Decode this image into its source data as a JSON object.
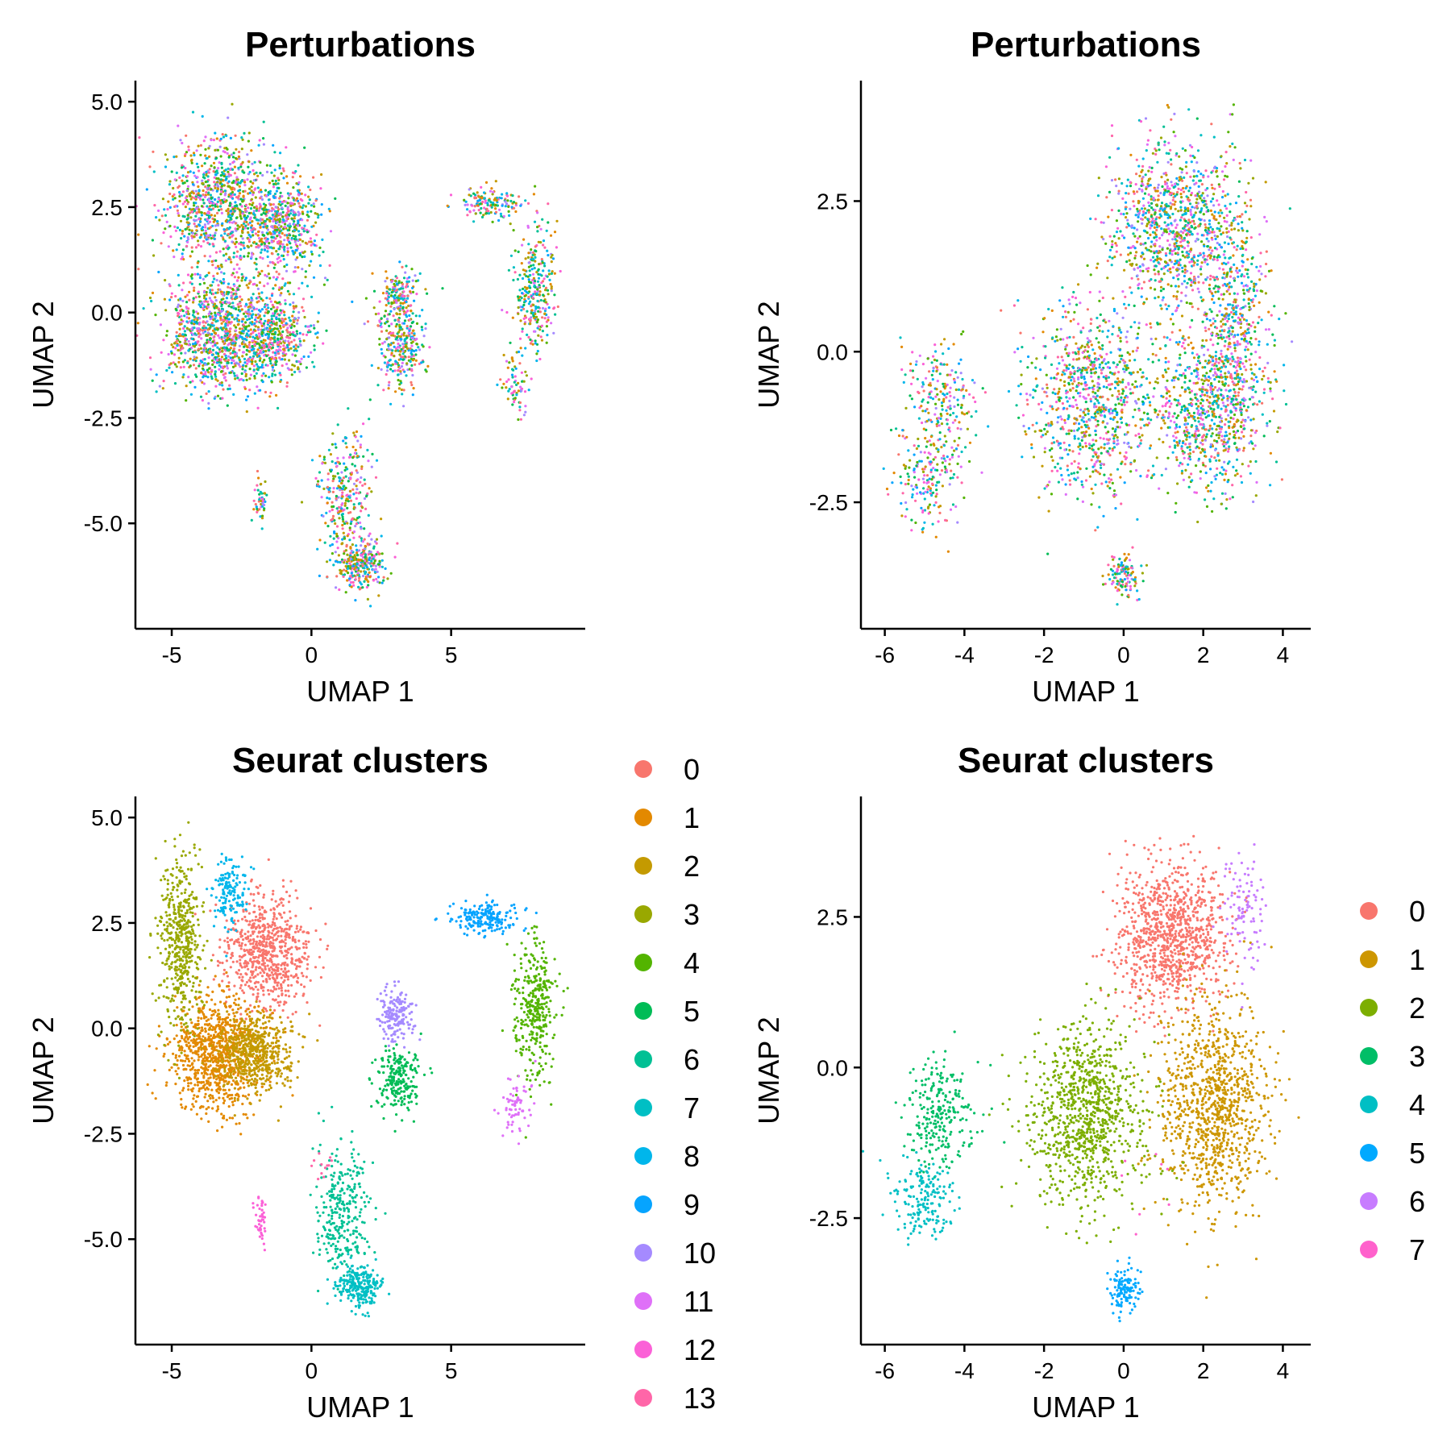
{
  "chart_data": [
    {
      "type": "scatter",
      "title": "Perturbations",
      "xlabel": "UMAP 1",
      "ylabel": "UMAP 2",
      "xlim": [
        -6.3,
        9.8
      ],
      "ylim": [
        -7.5,
        5.5
      ],
      "xticks": [
        -5,
        0,
        5
      ],
      "yticks": [
        -5.0,
        -2.5,
        0.0,
        2.5,
        5.0
      ],
      "xtick_labels": [
        "-5",
        "0",
        "5"
      ],
      "ytick_labels": [
        "-5.0",
        "-2.5",
        "0.0",
        "2.5",
        "5.0"
      ],
      "color_mode": "mixed",
      "legend": null,
      "groups": [
        {
          "cx": -3.3,
          "cy": 2.6,
          "sx": 1.3,
          "sy": 1.0,
          "n": 900
        },
        {
          "cx": -1.0,
          "cy": 2.0,
          "sx": 0.9,
          "sy": 0.8,
          "n": 550
        },
        {
          "cx": -3.5,
          "cy": -0.4,
          "sx": 1.2,
          "sy": 1.0,
          "n": 900
        },
        {
          "cx": -1.5,
          "cy": -0.6,
          "sx": 1.1,
          "sy": 0.7,
          "n": 600
        },
        {
          "cx": 3.2,
          "cy": -0.7,
          "sx": 0.6,
          "sy": 0.8,
          "n": 300
        },
        {
          "cx": 3.1,
          "cy": 0.4,
          "sx": 0.4,
          "sy": 0.4,
          "n": 150
        },
        {
          "cx": 6.4,
          "cy": 2.6,
          "sx": 0.8,
          "sy": 0.25,
          "n": 150
        },
        {
          "cx": 8.0,
          "cy": 0.5,
          "sx": 0.5,
          "sy": 1.1,
          "n": 300
        },
        {
          "cx": 7.3,
          "cy": -1.7,
          "sx": 0.3,
          "sy": 0.5,
          "n": 70
        },
        {
          "cx": 1.2,
          "cy": -4.4,
          "sx": 0.7,
          "sy": 1.0,
          "n": 300
        },
        {
          "cx": 1.7,
          "cy": -6.0,
          "sx": 0.6,
          "sy": 0.4,
          "n": 280
        },
        {
          "cx": -1.8,
          "cy": -4.5,
          "sx": 0.15,
          "sy": 0.4,
          "n": 45
        }
      ]
    },
    {
      "type": "scatter",
      "title": "Perturbations",
      "xlabel": "UMAP 1",
      "ylabel": "UMAP 2",
      "xlim": [
        -6.6,
        4.7
      ],
      "ylim": [
        -4.6,
        4.5
      ],
      "xticks": [
        -6,
        -4,
        -2,
        0,
        2,
        4
      ],
      "yticks": [
        -2.5,
        0.0,
        2.5
      ],
      "xtick_labels": [
        "-6",
        "-4",
        "-2",
        "0",
        "2",
        "4"
      ],
      "ytick_labels": [
        "-2.5",
        "0.0",
        "2.5"
      ],
      "color_mode": "mixed",
      "legend": null,
      "groups": [
        {
          "cx": 1.3,
          "cy": 2.1,
          "sx": 1.1,
          "sy": 0.9,
          "n": 1000
        },
        {
          "cx": 2.8,
          "cy": 0.3,
          "sx": 0.6,
          "sy": 1.3,
          "n": 550
        },
        {
          "cx": 2.0,
          "cy": -1.0,
          "sx": 0.9,
          "sy": 0.9,
          "n": 700
        },
        {
          "cx": -0.8,
          "cy": -0.8,
          "sx": 1.1,
          "sy": 1.0,
          "n": 900
        },
        {
          "cx": -4.6,
          "cy": -0.9,
          "sx": 0.6,
          "sy": 0.7,
          "n": 250
        },
        {
          "cx": -5.0,
          "cy": -2.2,
          "sx": 0.5,
          "sy": 0.5,
          "n": 150
        },
        {
          "cx": 0.0,
          "cy": -3.7,
          "sx": 0.25,
          "sy": 0.25,
          "n": 120
        }
      ]
    },
    {
      "type": "scatter",
      "title": "Seurat clusters",
      "xlabel": "UMAP 1",
      "ylabel": "UMAP 2",
      "xlim": [
        -6.3,
        9.8
      ],
      "ylim": [
        -7.5,
        5.5
      ],
      "xticks": [
        -5,
        0,
        5
      ],
      "yticks": [
        -5.0,
        -2.5,
        0.0,
        2.5,
        5.0
      ],
      "xtick_labels": [
        "-5",
        "0",
        "5"
      ],
      "ytick_labels": [
        "-5.0",
        "-2.5",
        "0.0",
        "2.5",
        "5.0"
      ],
      "color_mode": "cluster",
      "legend": {
        "entries": [
          "0",
          "1",
          "2",
          "3",
          "4",
          "5",
          "6",
          "7",
          "8",
          "9",
          "10",
          "11",
          "12",
          "13"
        ],
        "colors": [
          "#F8766D",
          "#E38900",
          "#C49A00",
          "#99A800",
          "#53B400",
          "#00BC56",
          "#00C094",
          "#00BFC4",
          "#00B6EB",
          "#06A4FF",
          "#A58AFF",
          "#DF70F8",
          "#FB61D7",
          "#FF66A8"
        ]
      },
      "groups": [
        {
          "cx": -1.6,
          "cy": 1.8,
          "sx": 1.0,
          "sy": 0.9,
          "n": 700,
          "c": 0
        },
        {
          "cx": -3.4,
          "cy": -0.6,
          "sx": 1.1,
          "sy": 0.9,
          "n": 900,
          "c": 1
        },
        {
          "cx": -2.0,
          "cy": -0.6,
          "sx": 0.9,
          "sy": 0.6,
          "n": 550,
          "c": 2
        },
        {
          "cx": -4.7,
          "cy": 2.0,
          "sx": 0.5,
          "sy": 1.4,
          "n": 500,
          "c": 3
        },
        {
          "cx": 8.0,
          "cy": 0.4,
          "sx": 0.5,
          "sy": 1.1,
          "n": 350,
          "c": 4
        },
        {
          "cx": 3.1,
          "cy": -1.2,
          "sx": 0.5,
          "sy": 0.5,
          "n": 220,
          "c": 5
        },
        {
          "cx": 1.1,
          "cy": -4.3,
          "sx": 0.6,
          "sy": 1.0,
          "n": 300,
          "c": 6
        },
        {
          "cx": 1.7,
          "cy": -6.1,
          "sx": 0.5,
          "sy": 0.35,
          "n": 250,
          "c": 7
        },
        {
          "cx": -2.9,
          "cy": 3.2,
          "sx": 0.4,
          "sy": 0.6,
          "n": 150,
          "c": 8
        },
        {
          "cx": 6.2,
          "cy": 2.6,
          "sx": 0.8,
          "sy": 0.25,
          "n": 200,
          "c": 9
        },
        {
          "cx": 3.0,
          "cy": 0.3,
          "sx": 0.4,
          "sy": 0.4,
          "n": 170,
          "c": 10
        },
        {
          "cx": 7.3,
          "cy": -1.8,
          "sx": 0.3,
          "sy": 0.5,
          "n": 70,
          "c": 11
        },
        {
          "cx": -1.8,
          "cy": -4.5,
          "sx": 0.15,
          "sy": 0.4,
          "n": 45,
          "c": 12
        },
        {
          "cx": 0.5,
          "cy": -3.2,
          "sx": 0.3,
          "sy": 0.3,
          "n": 12,
          "c": 13
        }
      ]
    },
    {
      "type": "scatter",
      "title": "Seurat clusters",
      "xlabel": "UMAP 1",
      "ylabel": "UMAP 2",
      "xlim": [
        -6.6,
        4.7
      ],
      "ylim": [
        -4.6,
        4.5
      ],
      "xticks": [
        -6,
        -4,
        -2,
        0,
        2,
        4
      ],
      "yticks": [
        -2.5,
        0.0,
        2.5
      ],
      "xtick_labels": [
        "-6",
        "-4",
        "-2",
        "0",
        "2",
        "4"
      ],
      "ytick_labels": [
        "-2.5",
        "0.0",
        "2.5"
      ],
      "color_mode": "cluster",
      "legend": {
        "entries": [
          "0",
          "1",
          "2",
          "3",
          "4",
          "5",
          "6",
          "7"
        ],
        "colors": [
          "#F8766D",
          "#CD9600",
          "#7CAE00",
          "#00BE67",
          "#00BFC4",
          "#00A9FF",
          "#C77CFF",
          "#FF61CC"
        ]
      },
      "groups": [
        {
          "cx": 1.2,
          "cy": 2.2,
          "sx": 0.9,
          "sy": 0.8,
          "n": 1000,
          "c": 0
        },
        {
          "cx": 2.3,
          "cy": -0.6,
          "sx": 0.9,
          "sy": 1.1,
          "n": 1000,
          "c": 1
        },
        {
          "cx": -0.9,
          "cy": -0.8,
          "sx": 1.0,
          "sy": 1.0,
          "n": 950,
          "c": 2
        },
        {
          "cx": -4.6,
          "cy": -0.8,
          "sx": 0.55,
          "sy": 0.6,
          "n": 250,
          "c": 3
        },
        {
          "cx": -5.0,
          "cy": -2.2,
          "sx": 0.5,
          "sy": 0.45,
          "n": 180,
          "c": 4
        },
        {
          "cx": 0.0,
          "cy": -3.7,
          "sx": 0.25,
          "sy": 0.25,
          "n": 120,
          "c": 5
        },
        {
          "cx": 3.0,
          "cy": 2.6,
          "sx": 0.35,
          "sy": 0.6,
          "n": 100,
          "c": 6
        },
        {
          "cx": 0.5,
          "cy": -2.0,
          "sx": 0.5,
          "sy": 0.5,
          "n": 8,
          "c": 7
        }
      ]
    }
  ],
  "mixed_palette": [
    "#F8766D",
    "#E38900",
    "#C49A00",
    "#99A800",
    "#53B400",
    "#00BC56",
    "#00C094",
    "#00BFC4",
    "#00B6EB",
    "#06A4FF",
    "#A58AFF",
    "#DF70F8",
    "#FB61D7",
    "#FF66A8"
  ]
}
